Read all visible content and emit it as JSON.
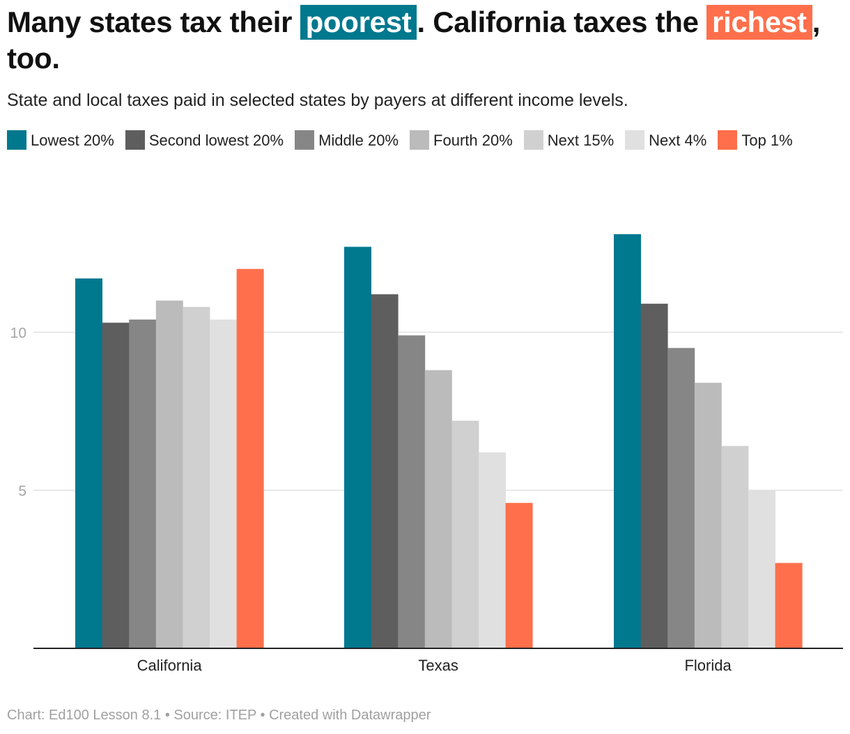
{
  "title": {
    "part1": "Many states tax their ",
    "highlight1": "poorest",
    "part2": ". California taxes the ",
    "highlight2": "richest",
    "part3": ", too."
  },
  "subtitle": "State and local taxes paid in selected states by payers at different income levels.",
  "footer": "Chart: Ed100 Lesson 8.1 • Source: ITEP • Created with Datawrapper",
  "colors": {
    "Lowest 20%": "#00788e",
    "Second lowest 20%": "#5e5e5e",
    "Middle 20%": "#868686",
    "Fourth 20%": "#bbbbbb",
    "Next 15%": "#d0d0d0",
    "Next 4%": "#e0e0e0",
    "Top 1%": "#ff6f4b"
  },
  "chart_data": {
    "type": "bar",
    "title": "Many states tax their poorest. California taxes the richest, too.",
    "xlabel": "",
    "ylabel": "",
    "ylim": [
      0,
      15
    ],
    "yticks": [
      5,
      10
    ],
    "grid": true,
    "legend_position": "top",
    "categories": [
      "California",
      "Texas",
      "Florida"
    ],
    "series": [
      {
        "name": "Lowest 20%",
        "values": [
          11.7,
          12.7,
          13.1
        ]
      },
      {
        "name": "Second lowest 20%",
        "values": [
          10.3,
          11.2,
          10.9
        ]
      },
      {
        "name": "Middle 20%",
        "values": [
          10.4,
          9.9,
          9.5
        ]
      },
      {
        "name": "Fourth 20%",
        "values": [
          11.0,
          8.8,
          8.4
        ]
      },
      {
        "name": "Next 15%",
        "values": [
          10.8,
          7.2,
          6.4
        ]
      },
      {
        "name": "Next 4%",
        "values": [
          10.4,
          6.2,
          5.0
        ]
      },
      {
        "name": "Top 1%",
        "values": [
          12.0,
          4.6,
          2.7
        ]
      }
    ]
  }
}
